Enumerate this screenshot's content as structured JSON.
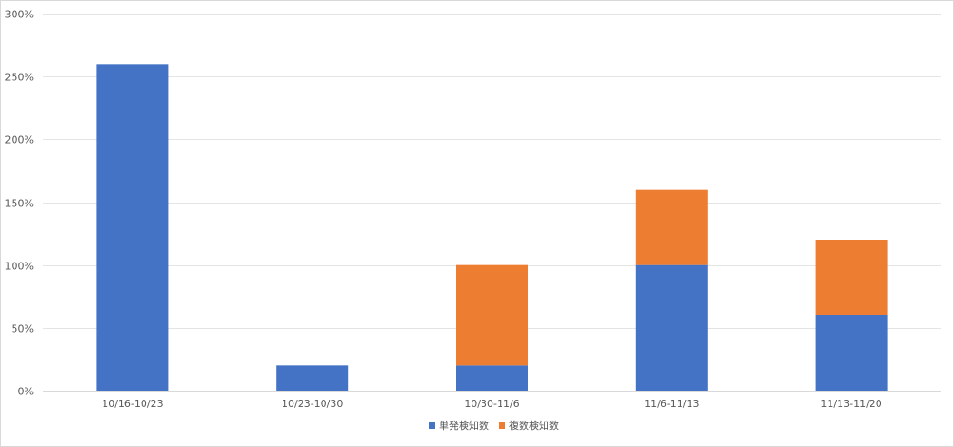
{
  "chart_data": {
    "type": "bar",
    "stacked": true,
    "categories": [
      "10/16-10/23",
      "10/23-10/30",
      "10/30-11/6",
      "11/6-11/13",
      "11/13-11/20"
    ],
    "series": [
      {
        "name": "単発検知数",
        "values": [
          260,
          20,
          20,
          100,
          60
        ],
        "color": "#4472c4"
      },
      {
        "name": "複数検知数",
        "values": [
          0,
          0,
          80,
          60,
          60
        ],
        "color": "#ed7d31"
      }
    ],
    "yticks": [
      "0%",
      "50%",
      "100%",
      "150%",
      "200%",
      "250%",
      "300%"
    ],
    "ylim": [
      0,
      300
    ],
    "grid": true,
    "legend_position": "bottom"
  }
}
